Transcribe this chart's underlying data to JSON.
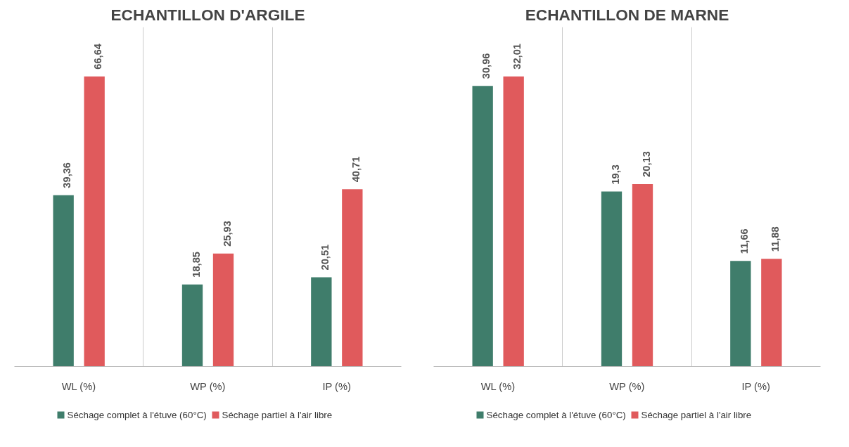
{
  "chart_data": [
    {
      "type": "bar",
      "title": "ECHANTILLON D'ARGILE",
      "categories": [
        "WL (%)",
        "WP (%)",
        "IP (%)"
      ],
      "grid": "x",
      "legend": "bottom",
      "tick_labels": "x",
      "series": [
        {
          "name": "Séchage complet à l'étuve (60°C)",
          "color": "#3f7d6b",
          "values": [
            39.36,
            18.85,
            20.51
          ],
          "value_labels": [
            "39,36",
            "18,85",
            "20,51"
          ]
        },
        {
          "name": "Séchage partiel à l'air libre",
          "color": "#e05a5c",
          "values": [
            66.64,
            25.93,
            40.71
          ],
          "value_labels": [
            "66,64",
            "25,93",
            "40,71"
          ]
        }
      ]
    },
    {
      "type": "bar",
      "title": "ECHANTILLON DE MARNE",
      "categories": [
        "WL (%)",
        "WP (%)",
        "IP (%)"
      ],
      "grid": "x",
      "legend": "bottom",
      "tick_labels": "x",
      "series": [
        {
          "name": "Séchage complet à l'étuve (60°C)",
          "color": "#3f7d6b",
          "values": [
            30.96,
            19.3,
            11.66
          ],
          "value_labels": [
            "30,96",
            "19,3",
            "11,66"
          ]
        },
        {
          "name": "Séchage partiel à l'air libre",
          "color": "#e05a5c",
          "values": [
            32.01,
            20.13,
            11.88
          ],
          "value_labels": [
            "32,01",
            "20,13",
            "11,88"
          ]
        }
      ]
    }
  ]
}
